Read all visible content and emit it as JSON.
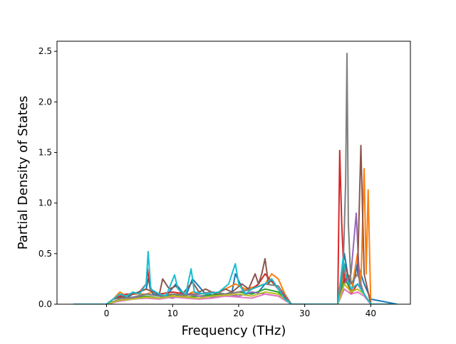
{
  "chart_data": {
    "type": "line",
    "title": "",
    "xlabel": "Frequency (THz)",
    "ylabel": "Partial Density of States",
    "xlim": [
      -7.5,
      46
    ],
    "ylim": [
      0,
      2.6
    ],
    "xticks": [
      0,
      10,
      20,
      30,
      40
    ],
    "yticks": [
      0.0,
      0.5,
      1.0,
      1.5,
      2.0,
      2.5
    ],
    "xtick_labels": [
      "0",
      "10",
      "20",
      "30",
      "40"
    ],
    "ytick_labels": [
      "0.0",
      "0.5",
      "1.0",
      "1.5",
      "2.0",
      "2.5"
    ],
    "grid": false,
    "legend": "none",
    "series": [
      {
        "color": "#1f77b4",
        "x": [
          -5,
          0,
          1,
          2,
          3,
          4,
          6,
          6.3,
          7,
          9,
          10.5,
          12,
          13,
          15,
          17,
          19,
          19.5,
          21,
          23,
          24,
          25,
          26,
          27,
          28,
          35,
          35.5,
          36,
          36.5,
          37,
          38,
          39,
          40,
          44
        ],
        "y": [
          0,
          0,
          0.05,
          0.08,
          0.06,
          0.1,
          0.15,
          0.25,
          0.1,
          0.08,
          0.2,
          0.08,
          0.25,
          0.1,
          0.08,
          0.12,
          0.3,
          0.1,
          0.12,
          0.2,
          0.25,
          0.15,
          0.05,
          0,
          0,
          0.2,
          0.5,
          0.3,
          0.1,
          0.4,
          0.2,
          0.05,
          0
        ]
      },
      {
        "color": "#ff7f0e",
        "x": [
          -5,
          0,
          1,
          2,
          3,
          4,
          6,
          7,
          9,
          10.5,
          12,
          13,
          15,
          17,
          18,
          19.5,
          21,
          23,
          24,
          25,
          26,
          27,
          28,
          35,
          36,
          37,
          38,
          38.5,
          39,
          39.3,
          39.6,
          40,
          44
        ],
        "y": [
          0,
          0,
          0.05,
          0.12,
          0.08,
          0.1,
          0.1,
          0.12,
          0.08,
          0.1,
          0.08,
          0.12,
          0.1,
          0.12,
          0.15,
          0.2,
          0.15,
          0.18,
          0.2,
          0.3,
          0.25,
          0.1,
          0,
          0,
          0.3,
          0.1,
          0.5,
          0.2,
          1.34,
          0.3,
          1.13,
          0,
          0
        ]
      },
      {
        "color": "#2ca02c",
        "x": [
          -5,
          0,
          2,
          4,
          6,
          8,
          10,
          12,
          14,
          16,
          18,
          20,
          22,
          24,
          26,
          28,
          35,
          36,
          37,
          38,
          39,
          40,
          44
        ],
        "y": [
          0,
          0,
          0.05,
          0.06,
          0.08,
          0.06,
          0.1,
          0.07,
          0.08,
          0.09,
          0.1,
          0.12,
          0.1,
          0.15,
          0.12,
          0,
          0,
          0.25,
          0.15,
          0.2,
          0.1,
          0,
          0
        ]
      },
      {
        "color": "#d62728",
        "x": [
          -5,
          0,
          1,
          2,
          3,
          4,
          5,
          6,
          6.2,
          6.6,
          8,
          10,
          12,
          14,
          16,
          18,
          20,
          22,
          23,
          24,
          26,
          28,
          35,
          35.3,
          35.6,
          36,
          36.5,
          37,
          38,
          39,
          40,
          44
        ],
        "y": [
          0,
          0,
          0.05,
          0.08,
          0.1,
          0.1,
          0.12,
          0.2,
          0.35,
          0.15,
          0.1,
          0.12,
          0.1,
          0.1,
          0.12,
          0.1,
          0.12,
          0.15,
          0.2,
          0.3,
          0.15,
          0,
          0,
          1.52,
          0.8,
          0.2,
          0.3,
          0.1,
          0.2,
          0.1,
          0,
          0
        ]
      },
      {
        "color": "#9467bd",
        "x": [
          -5,
          0,
          2,
          4,
          6,
          8,
          10,
          12,
          14,
          16,
          18,
          20,
          22,
          24,
          26,
          28,
          35,
          36,
          37,
          37.8,
          38.3,
          39,
          40,
          44
        ],
        "y": [
          0,
          0,
          0.04,
          0.06,
          0.1,
          0.08,
          0.06,
          0.1,
          0.08,
          0.07,
          0.1,
          0.08,
          0.12,
          0.1,
          0.08,
          0,
          0,
          0.2,
          0.3,
          0.9,
          0.2,
          0.1,
          0,
          0
        ]
      },
      {
        "color": "#8c564b",
        "x": [
          -5,
          0,
          1,
          3,
          5,
          6,
          7,
          8,
          8.5,
          9.5,
          10.5,
          11.5,
          13,
          14,
          15,
          16.5,
          18,
          19,
          20.5,
          21.5,
          22.5,
          23,
          23.5,
          24,
          24.5,
          25,
          26,
          27,
          28,
          35,
          36,
          37,
          38,
          38.5,
          39,
          40,
          44
        ],
        "y": [
          0,
          0,
          0.05,
          0.08,
          0.12,
          0.15,
          0.12,
          0.1,
          0.25,
          0.15,
          0.18,
          0.1,
          0.22,
          0.12,
          0.15,
          0.1,
          0.15,
          0.12,
          0.2,
          0.15,
          0.3,
          0.2,
          0.3,
          0.45,
          0.2,
          0.25,
          0.15,
          0.05,
          0,
          0,
          0.4,
          0.2,
          0.3,
          1.57,
          0.3,
          0,
          0
        ]
      },
      {
        "color": "#e377c2",
        "x": [
          -5,
          0,
          2,
          4,
          6,
          8,
          10,
          12,
          14,
          16,
          18,
          20,
          22,
          24,
          26,
          28,
          35,
          36,
          37,
          38,
          39,
          40,
          44
        ],
        "y": [
          0,
          0,
          0.03,
          0.05,
          0.06,
          0.05,
          0.07,
          0.06,
          0.05,
          0.06,
          0.08,
          0.07,
          0.06,
          0.1,
          0.08,
          0,
          0,
          0.15,
          0.1,
          0.12,
          0.08,
          0,
          0
        ]
      },
      {
        "color": "#7f7f7f",
        "x": [
          -5,
          0,
          2,
          4,
          6,
          8,
          10,
          12,
          14,
          16,
          18,
          20,
          22,
          24,
          26,
          28,
          35,
          35.8,
          36.2,
          36.4,
          36.6,
          37,
          38,
          39,
          40,
          44
        ],
        "y": [
          0,
          0,
          0.05,
          0.07,
          0.1,
          0.08,
          0.1,
          0.09,
          0.1,
          0.12,
          0.1,
          0.12,
          0.15,
          0.2,
          0.18,
          0,
          0,
          0.3,
          1.2,
          2.48,
          0.8,
          0.2,
          0.3,
          0.1,
          0,
          0
        ]
      },
      {
        "color": "#bcbd22",
        "x": [
          -5,
          0,
          2,
          4,
          6,
          8,
          10,
          12,
          14,
          16,
          18,
          20,
          22,
          24,
          26,
          28,
          35,
          36,
          37,
          38,
          39,
          40,
          44
        ],
        "y": [
          0,
          0,
          0.04,
          0.05,
          0.07,
          0.06,
          0.08,
          0.07,
          0.06,
          0.08,
          0.09,
          0.1,
          0.08,
          0.12,
          0.1,
          0,
          0,
          0.2,
          0.12,
          0.15,
          0.1,
          0,
          0
        ]
      },
      {
        "color": "#17becf",
        "x": [
          -5,
          0,
          1,
          2,
          3,
          4,
          5,
          6,
          6.3,
          6.7,
          8,
          9,
          10.3,
          10.8,
          12,
          12.8,
          13.3,
          15,
          17,
          18.5,
          19.5,
          20,
          21,
          22,
          24,
          25,
          26,
          27,
          28,
          35,
          35.8,
          36.2,
          37,
          38,
          39,
          40,
          44
        ],
        "y": [
          0,
          0,
          0.05,
          0.1,
          0.08,
          0.12,
          0.1,
          0.2,
          0.52,
          0.15,
          0.1,
          0.08,
          0.29,
          0.15,
          0.1,
          0.35,
          0.12,
          0.1,
          0.12,
          0.2,
          0.4,
          0.2,
          0.1,
          0.15,
          0.2,
          0.25,
          0.15,
          0.05,
          0,
          0,
          0.45,
          0.3,
          0.15,
          0.2,
          0.1,
          0,
          0
        ]
      }
    ]
  }
}
